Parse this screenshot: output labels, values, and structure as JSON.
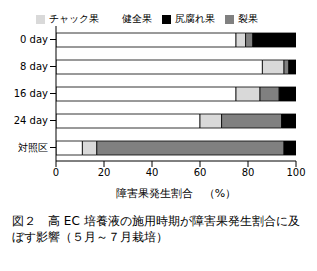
{
  "chart_data": {
    "type": "bar",
    "orientation": "horizontal",
    "stacked": true,
    "title": "図２　高 EC 培養液の施用時期が障害果発生割合に及ぼす影響（５月～７月栽培）",
    "x_label": "障害果発生割合　（%）",
    "categories": [
      "0 day",
      "8 day",
      "16 day",
      "24 day",
      "対照区"
    ],
    "series": [
      {
        "name": "健全果",
        "color": "#ffffff",
        "values": [
          75,
          86,
          75,
          60,
          11
        ]
      },
      {
        "name": "チャック果",
        "color": "#d9d9d9",
        "values": [
          4,
          9,
          10,
          9,
          6
        ]
      },
      {
        "name": "裂果",
        "color": "#808080",
        "values": [
          3,
          2,
          8,
          25,
          78
        ]
      },
      {
        "name": "尻腐れ果",
        "color": "#000000",
        "values": [
          18,
          3,
          7,
          6,
          5
        ]
      }
    ],
    "xlim": [
      0,
      100
    ],
    "xticks": [
      0,
      20,
      40,
      60,
      80,
      100
    ],
    "grid": false,
    "legend": "top",
    "data_labels": false
  }
}
